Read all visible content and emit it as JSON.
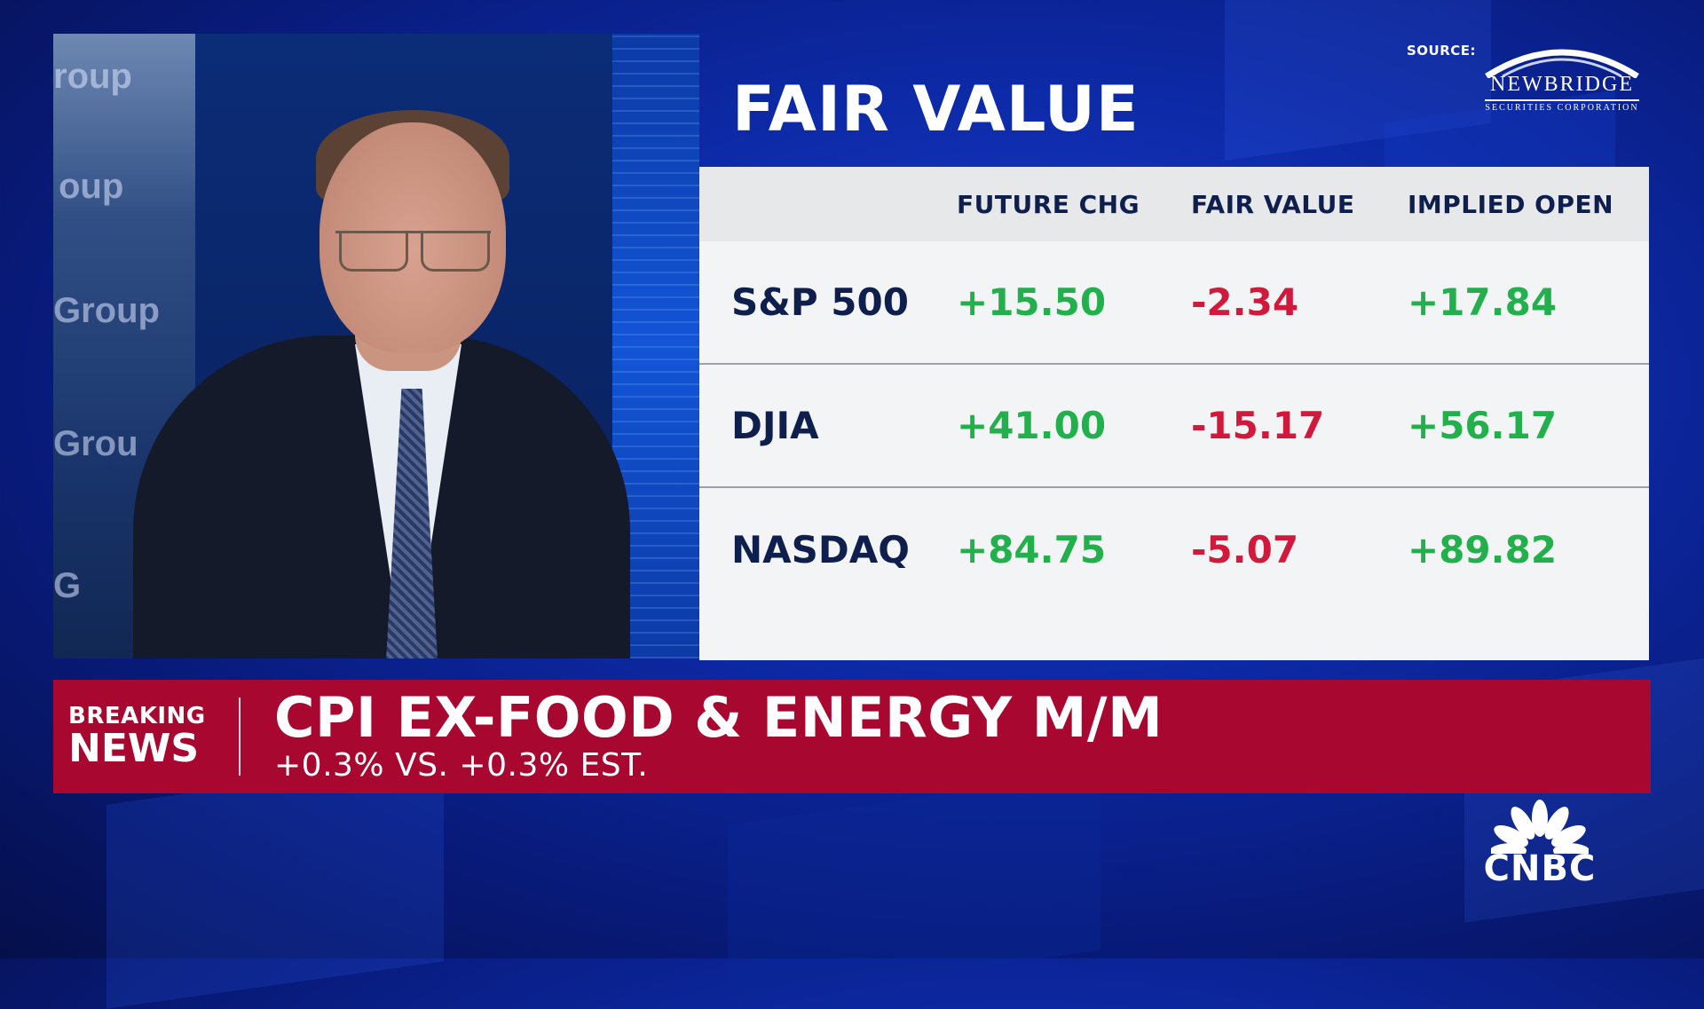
{
  "video": {
    "wall_text": [
      "roup",
      "oup",
      "Group",
      "Grou",
      "G"
    ]
  },
  "graphic": {
    "title": "FAIR VALUE",
    "source_label": "SOURCE:",
    "source_logo": {
      "name": "NEWBRIDGE",
      "subtitle": "SECURITIES CORPORATION"
    },
    "columns": [
      "FUTURE CHG",
      "FAIR VALUE",
      "IMPLIED OPEN"
    ],
    "rows": [
      {
        "name": "S&P 500",
        "future_chg": "+15.50",
        "fair_value": "-2.34",
        "implied_open": "+17.84"
      },
      {
        "name": "DJIA",
        "future_chg": "+41.00",
        "fair_value": "-15.17",
        "implied_open": "+56.17"
      },
      {
        "name": "NASDAQ",
        "future_chg": "+84.75",
        "fair_value": "-5.07",
        "implied_open": "+89.82"
      }
    ]
  },
  "banner": {
    "tag_line1": "BREAKING",
    "tag_line2": "NEWS",
    "headline": "CPI EX-FOOD & ENERGY M/M",
    "subline": "+0.3% VS. +0.3% EST."
  },
  "network": {
    "logo_text": "CNBC",
    "logo_icon": "peacock-icon"
  },
  "colors": {
    "positive": "#21b04b",
    "negative": "#d1193b",
    "banner_red": "#a8072f",
    "navy_text": "#0e1f4d",
    "background_blue": "#0d2aa8"
  }
}
